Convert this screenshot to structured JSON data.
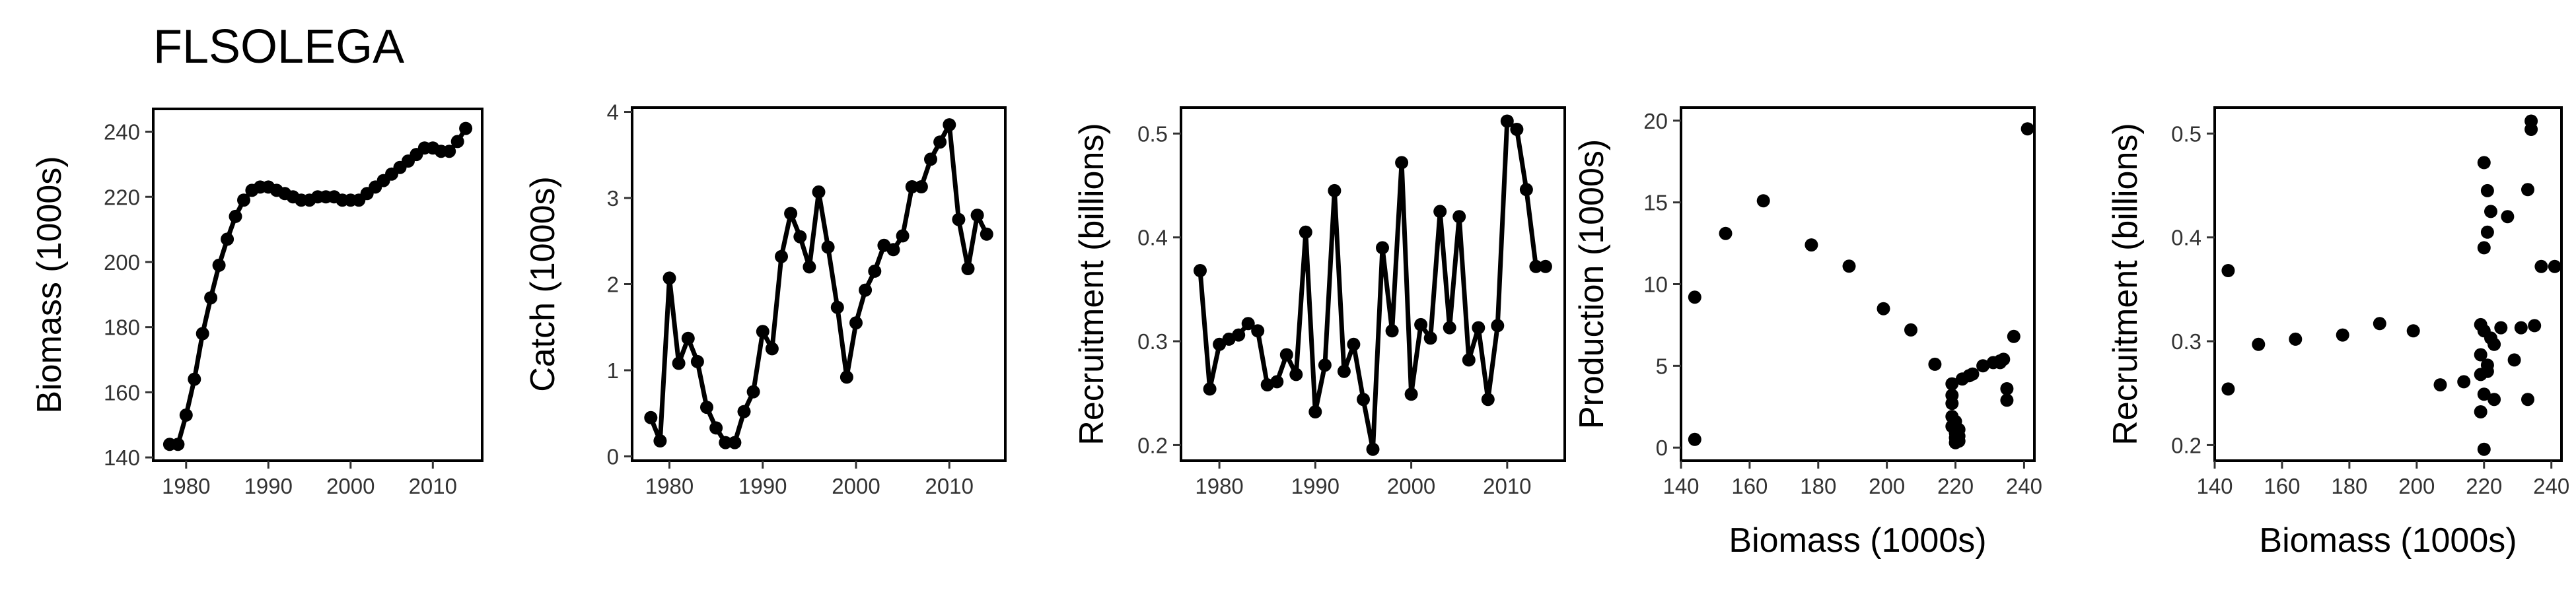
{
  "title": "FLSOLEGA",
  "chart_data": [
    {
      "id": "biomass",
      "type": "line",
      "markers": true,
      "xlabel": "",
      "ylabel": "Biomass (1000s)",
      "xlim": [
        1976,
        2016
      ],
      "ylim": [
        139,
        247
      ],
      "xticks": [
        1980,
        1990,
        2000,
        2010
      ],
      "yticks": [
        140,
        160,
        180,
        200,
        220,
        240
      ],
      "x": [
        1978,
        1979,
        1980,
        1981,
        1982,
        1983,
        1984,
        1985,
        1986,
        1987,
        1988,
        1989,
        1990,
        1991,
        1992,
        1993,
        1994,
        1995,
        1996,
        1997,
        1998,
        1999,
        2000,
        2001,
        2002,
        2003,
        2004,
        2005,
        2006,
        2007,
        2008,
        2009,
        2010,
        2011,
        2012,
        2013,
        2014
      ],
      "y": [
        144,
        144,
        153,
        164,
        178,
        189,
        199,
        207,
        214,
        219,
        222,
        223,
        223,
        222,
        221,
        220,
        219,
        219,
        220,
        220,
        220,
        219,
        219,
        219,
        221,
        223,
        225,
        227,
        229,
        231,
        233,
        235,
        235,
        234,
        234,
        237,
        241
      ],
      "color": "#000000"
    },
    {
      "id": "catch",
      "type": "line",
      "markers": true,
      "xlabel": "",
      "ylabel": "Catch (1000s)",
      "xlim": [
        1976,
        2016
      ],
      "ylim": [
        -0.05,
        4.05
      ],
      "xticks": [
        1980,
        1990,
        2000,
        2010
      ],
      "yticks": [
        0,
        1,
        2,
        3,
        4
      ],
      "x": [
        1978,
        1979,
        1980,
        1981,
        1982,
        1983,
        1984,
        1985,
        1986,
        1987,
        1988,
        1989,
        1990,
        1991,
        1992,
        1993,
        1994,
        1995,
        1996,
        1997,
        1998,
        1999,
        2000,
        2001,
        2002,
        2003,
        2004,
        2005,
        2006,
        2007,
        2008,
        2009,
        2010,
        2011,
        2012,
        2013,
        2014
      ],
      "y": [
        0.45,
        0.18,
        2.07,
        1.08,
        1.37,
        1.1,
        0.57,
        0.33,
        0.16,
        0.16,
        0.52,
        0.75,
        1.45,
        1.25,
        2.32,
        2.82,
        2.55,
        2.2,
        3.07,
        2.43,
        1.73,
        0.92,
        1.55,
        1.93,
        2.15,
        2.45,
        2.4,
        2.56,
        3.13,
        3.13,
        3.45,
        3.65,
        3.85,
        2.75,
        2.18,
        2.8,
        2.58
      ],
      "color": "#000000"
    },
    {
      "id": "recruitment",
      "type": "line",
      "markers": true,
      "xlabel": "",
      "ylabel": "Recruitment (billions)",
      "xlim": [
        1976,
        2016
      ],
      "ylim": [
        0.185,
        0.525
      ],
      "xticks": [
        1980,
        1990,
        2000,
        2010
      ],
      "yticks": [
        0.2,
        0.3,
        0.4,
        0.5
      ],
      "x": [
        1978,
        1979,
        1980,
        1981,
        1982,
        1983,
        1984,
        1985,
        1986,
        1987,
        1988,
        1989,
        1990,
        1991,
        1992,
        1993,
        1994,
        1995,
        1996,
        1997,
        1998,
        1999,
        2000,
        2001,
        2002,
        2003,
        2004,
        2005,
        2006,
        2007,
        2008,
        2009,
        2010,
        2011,
        2012,
        2013,
        2014
      ],
      "y": [
        0.368,
        0.254,
        0.297,
        0.302,
        0.306,
        0.317,
        0.31,
        0.258,
        0.261,
        0.287,
        0.268,
        0.405,
        0.232,
        0.277,
        0.445,
        0.271,
        0.297,
        0.244,
        0.196,
        0.39,
        0.31,
        0.472,
        0.249,
        0.316,
        0.303,
        0.425,
        0.313,
        0.42,
        0.282,
        0.313,
        0.244,
        0.315,
        0.512,
        0.504,
        0.446,
        0.372,
        0.372
      ],
      "color": "#000000"
    },
    {
      "id": "production-vs-biomass",
      "type": "scatter",
      "xlabel": "Biomass (1000s)",
      "ylabel": "Production (1000s)",
      "xlim": [
        140,
        243
      ],
      "ylim": [
        -0.8,
        20.8
      ],
      "xticks": [
        140,
        160,
        180,
        200,
        220,
        240
      ],
      "yticks": [
        0,
        5,
        10,
        15,
        20
      ],
      "x": [
        144,
        144,
        153,
        164,
        178,
        189,
        199,
        207,
        214,
        219,
        219,
        219,
        219,
        219,
        220,
        220,
        220,
        220,
        220,
        221,
        221,
        221,
        222,
        224,
        225,
        228,
        231,
        233,
        233,
        234,
        235,
        235,
        237,
        241
      ],
      "y": [
        9.2,
        0.5,
        13.1,
        15.1,
        12.4,
        11.1,
        8.5,
        7.2,
        5.1,
        3.9,
        3.2,
        2.7,
        1.9,
        1.3,
        1.6,
        1.0,
        0.6,
        0.3,
        0.9,
        1.1,
        0.7,
        0.4,
        4.2,
        4.4,
        4.5,
        5.0,
        5.2,
        5.3,
        5.2,
        5.4,
        3.6,
        2.9,
        6.8,
        19.5
      ],
      "color": "#000000"
    },
    {
      "id": "recruitment-vs-biomass",
      "type": "scatter",
      "xlabel": "Biomass (1000s)",
      "ylabel": "Recruitment (billions)",
      "xlim": [
        140,
        243
      ],
      "ylim": [
        0.185,
        0.525
      ],
      "xticks": [
        140,
        160,
        180,
        200,
        220,
        240
      ],
      "yticks": [
        0.2,
        0.3,
        0.4,
        0.5
      ],
      "x": [
        144,
        144,
        153,
        164,
        178,
        189,
        199,
        207,
        214,
        219,
        219,
        219,
        220,
        220,
        220,
        220,
        220,
        221,
        221,
        221,
        222,
        222,
        223,
        223,
        225,
        227,
        229,
        231,
        233,
        233,
        234,
        234,
        235,
        237,
        241,
        219,
        221
      ],
      "y": [
        0.368,
        0.254,
        0.297,
        0.302,
        0.306,
        0.317,
        0.31,
        0.258,
        0.261,
        0.287,
        0.268,
        0.232,
        0.472,
        0.39,
        0.31,
        0.249,
        0.196,
        0.405,
        0.277,
        0.445,
        0.303,
        0.425,
        0.297,
        0.244,
        0.313,
        0.42,
        0.282,
        0.313,
        0.244,
        0.446,
        0.504,
        0.512,
        0.315,
        0.372,
        0.372,
        0.316,
        0.271
      ],
      "color": "#000000"
    }
  ]
}
